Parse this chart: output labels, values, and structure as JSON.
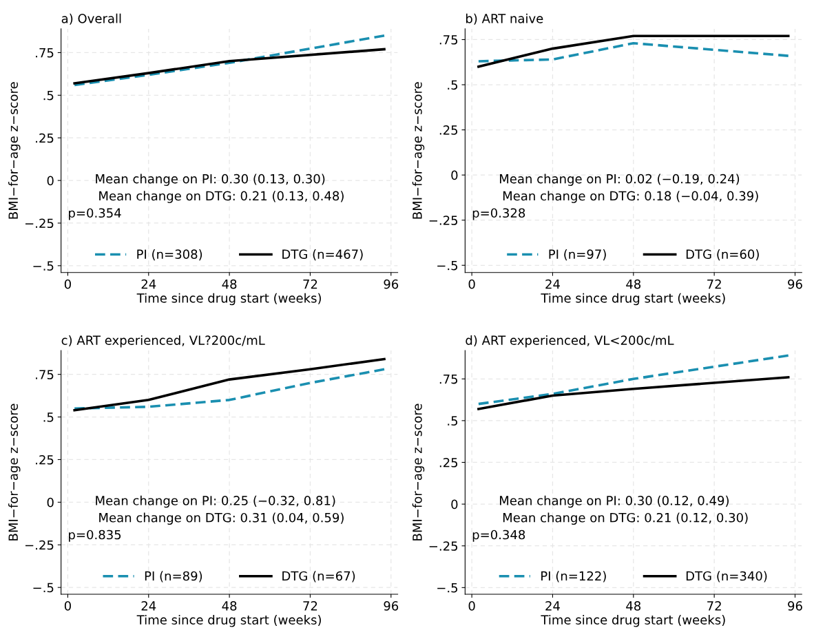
{
  "chart_data": [
    {
      "type": "line",
      "title": "a) Overall",
      "xlabel": "Time since drug start (weeks)",
      "ylabel": "BMI−for−age z−score",
      "xlim": [
        -2,
        98
      ],
      "xticks": [
        0,
        24,
        48,
        72,
        96
      ],
      "ylim": [
        -0.54,
        0.89
      ],
      "yticks": [
        {
          "value": 0.75,
          "label": ".75"
        },
        {
          "value": 0.5,
          "label": ".5"
        },
        {
          "value": 0.25,
          "label": ".25"
        },
        0,
        {
          "value": -0.25,
          "label": "−.25"
        },
        {
          "value": -0.5,
          "label": "−.5"
        }
      ],
      "grid": true,
      "legend": "bottom",
      "marker": "none",
      "annotations": [
        "Mean change on PI: 0.30 (0.13, 0.30)",
        "Mean change on DTG: 0.21 (0.13, 0.48)",
        "p=0.354"
      ],
      "series": [
        {
          "name": "PI (n=308)",
          "color": "#1a8fb0",
          "line_style": "dashed",
          "x": [
            2,
            24,
            48,
            94
          ],
          "values": [
            0.56,
            0.62,
            0.69,
            0.85
          ]
        },
        {
          "name": "DTG (n=467)",
          "color": "#000000",
          "line_style": "solid",
          "x": [
            2,
            24,
            48,
            94
          ],
          "values": [
            0.57,
            0.63,
            0.7,
            0.77
          ]
        }
      ]
    },
    {
      "type": "line",
      "title": "b) ART naive",
      "xlabel": "Time since drug start (weeks)",
      "ylabel": "BMI−for−age z−score",
      "xlim": [
        -2,
        98
      ],
      "xticks": [
        0,
        24,
        48,
        72,
        96
      ],
      "ylim": [
        -0.54,
        0.81
      ],
      "yticks": [
        {
          "value": 0.75,
          "label": ".75"
        },
        {
          "value": 0.5,
          "label": ".5"
        },
        {
          "value": 0.25,
          "label": ".25"
        },
        0,
        {
          "value": -0.25,
          "label": "−.25"
        },
        {
          "value": -0.5,
          "label": "−.5"
        }
      ],
      "grid": true,
      "legend": "bottom",
      "marker": "none",
      "annotations": [
        "Mean change on PI: 0.02 (−0.19, 0.24)",
        "Mean change on DTG: 0.18 (−0.04, 0.39)",
        "p=0.328"
      ],
      "series": [
        {
          "name": "PI (n=97)",
          "color": "#1a8fb0",
          "line_style": "dashed",
          "x": [
            2,
            24,
            48,
            94
          ],
          "values": [
            0.63,
            0.64,
            0.73,
            0.66
          ]
        },
        {
          "name": "DTG (n=60)",
          "color": "#000000",
          "line_style": "solid",
          "x": [
            2,
            24,
            48,
            94
          ],
          "values": [
            0.6,
            0.7,
            0.77,
            0.77
          ]
        }
      ]
    },
    {
      "type": "line",
      "title": "c) ART experienced, VL?200c/mL",
      "xlabel": "Time since drug start (weeks)",
      "ylabel": "BMI−for−age z−score",
      "xlim": [
        -2,
        98
      ],
      "xticks": [
        0,
        24,
        48,
        72,
        96
      ],
      "ylim": [
        -0.54,
        0.89
      ],
      "yticks": [
        {
          "value": 0.75,
          "label": ".75"
        },
        {
          "value": 0.5,
          "label": ".5"
        },
        {
          "value": 0.25,
          "label": ".25"
        },
        0,
        {
          "value": -0.25,
          "label": "−.25"
        },
        {
          "value": -0.5,
          "label": "−.5"
        }
      ],
      "grid": true,
      "legend": "bottom",
      "marker": "none",
      "annotations": [
        "Mean change on PI: 0.25 (−0.32, 0.81)",
        "Mean change on DTG: 0.31 (0.04, 0.59)",
        "p=0.835"
      ],
      "series": [
        {
          "name": "PI (n=89)",
          "color": "#1a8fb0",
          "line_style": "dashed",
          "x": [
            2,
            24,
            48,
            72,
            94
          ],
          "values": [
            0.55,
            0.56,
            0.6,
            0.7,
            0.78
          ]
        },
        {
          "name": "DTG (n=67)",
          "color": "#000000",
          "line_style": "solid",
          "x": [
            2,
            24,
            48,
            72,
            94
          ],
          "values": [
            0.54,
            0.6,
            0.72,
            0.78,
            0.84
          ]
        }
      ]
    },
    {
      "type": "line",
      "title": "d) ART experienced, VL<200c/mL",
      "xlabel": "Time since drug start (weeks)",
      "ylabel": "BMI−for−age z−score",
      "xlim": [
        -2,
        98
      ],
      "xticks": [
        0,
        24,
        48,
        72,
        96
      ],
      "ylim": [
        -0.54,
        0.92
      ],
      "yticks": [
        {
          "value": 0.75,
          "label": ".75"
        },
        {
          "value": 0.5,
          "label": ".5"
        },
        {
          "value": 0.25,
          "label": ".25"
        },
        0,
        {
          "value": -0.25,
          "label": "−.25"
        },
        {
          "value": -0.5,
          "label": "−.5"
        }
      ],
      "grid": true,
      "legend": "bottom",
      "marker": "none",
      "annotations": [
        "Mean change on PI: 0.30 (0.12, 0.49)",
        "Mean change on DTG: 0.21 (0.12, 0.30)",
        "p=0.348"
      ],
      "series": [
        {
          "name": "PI (n=122)",
          "color": "#1a8fb0",
          "line_style": "dashed",
          "x": [
            2,
            24,
            48,
            94
          ],
          "values": [
            0.6,
            0.66,
            0.75,
            0.89
          ]
        },
        {
          "name": "DTG (n=340)",
          "color": "#000000",
          "line_style": "solid",
          "x": [
            2,
            24,
            48,
            94
          ],
          "values": [
            0.57,
            0.65,
            0.69,
            0.76
          ]
        }
      ]
    }
  ]
}
